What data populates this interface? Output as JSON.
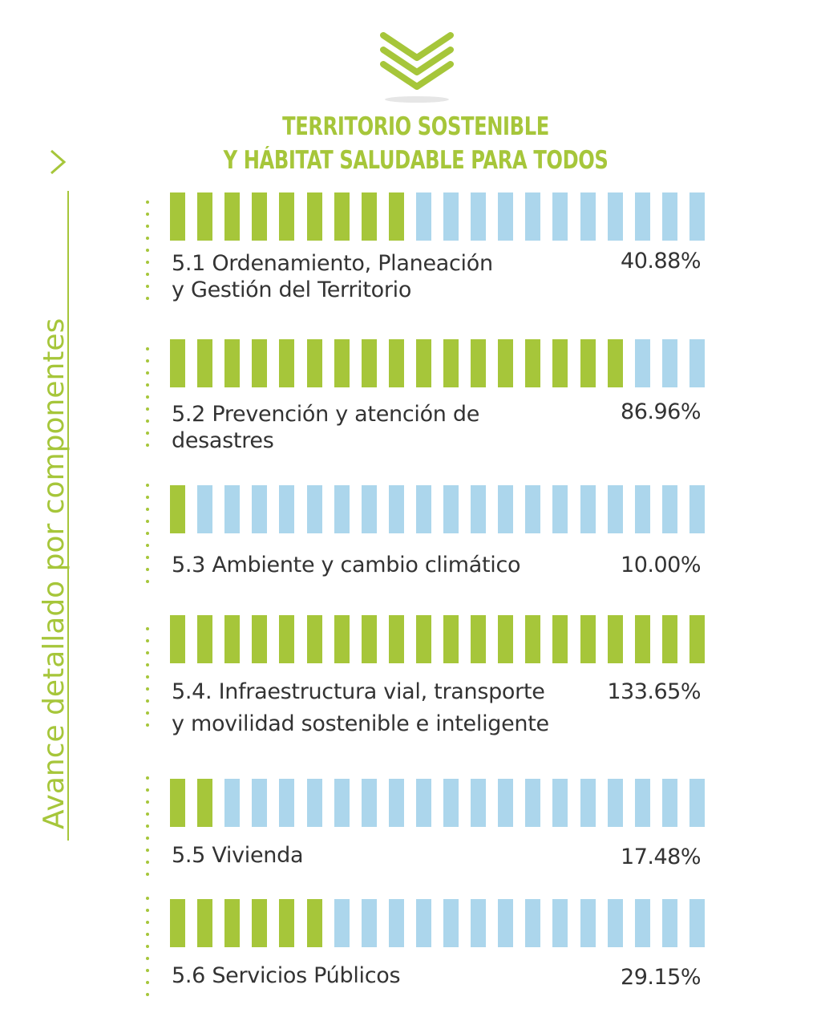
{
  "colors": {
    "accent": "#a6c63a",
    "remaining": "#acd6ec",
    "text": "#333333"
  },
  "icons": {
    "logo": "triple-chevron-down-icon",
    "side": "chevron-right-icon"
  },
  "title": {
    "line1": "TERRITORIO SOSTENIBLE",
    "line2": "Y HÁBITAT SALUDABLE PARA TODOS"
  },
  "side_label": "Avance detallado por componentes",
  "chart_data": {
    "type": "bar",
    "title": "TERRITORIO SOSTENIBLE Y HÁBITAT SALUDABLE PARA TODOS",
    "ylabel": "Avance detallado por componentes",
    "segments_total": 20,
    "categories": [
      "5.1 Ordenamiento, Planeación y Gestión del Territorio",
      "5.2 Prevención y atención de desastres",
      "5.3 Ambiente y cambio climático",
      "5.4. Infraestructura vial, transporte y movilidad sostenible e inteligente",
      "5.5 Vivienda",
      "5.6 Servicios Públicos"
    ],
    "values": [
      40.88,
      86.96,
      10.0,
      133.65,
      17.48,
      29.15
    ],
    "components": [
      {
        "label_lines": [
          "5.1 Ordenamiento, Planeación",
          "y Gestión del Territorio"
        ],
        "value_text": "40.88%",
        "value": 40.88,
        "filled": 9
      },
      {
        "label_lines": [
          "5.2 Prevención y atención de",
          "desastres"
        ],
        "value_text": "86.96%",
        "value": 86.96,
        "filled": 17
      },
      {
        "label_lines": [
          "5.3 Ambiente y cambio climático"
        ],
        "value_text": "10.00%",
        "value": 10.0,
        "filled": 1
      },
      {
        "label_lines": [
          "5.4. Infraestructura vial, transporte",
          "y movilidad sostenible e inteligente"
        ],
        "value_text": "133.65%",
        "value": 133.65,
        "filled": 20
      },
      {
        "label_lines": [
          "5.5 Vivienda"
        ],
        "value_text": "17.48%",
        "value": 17.48,
        "filled": 2
      },
      {
        "label_lines": [
          "5.6 Servicios Públicos"
        ],
        "value_text": "29.15%",
        "value": 29.15,
        "filled": 6
      }
    ]
  }
}
